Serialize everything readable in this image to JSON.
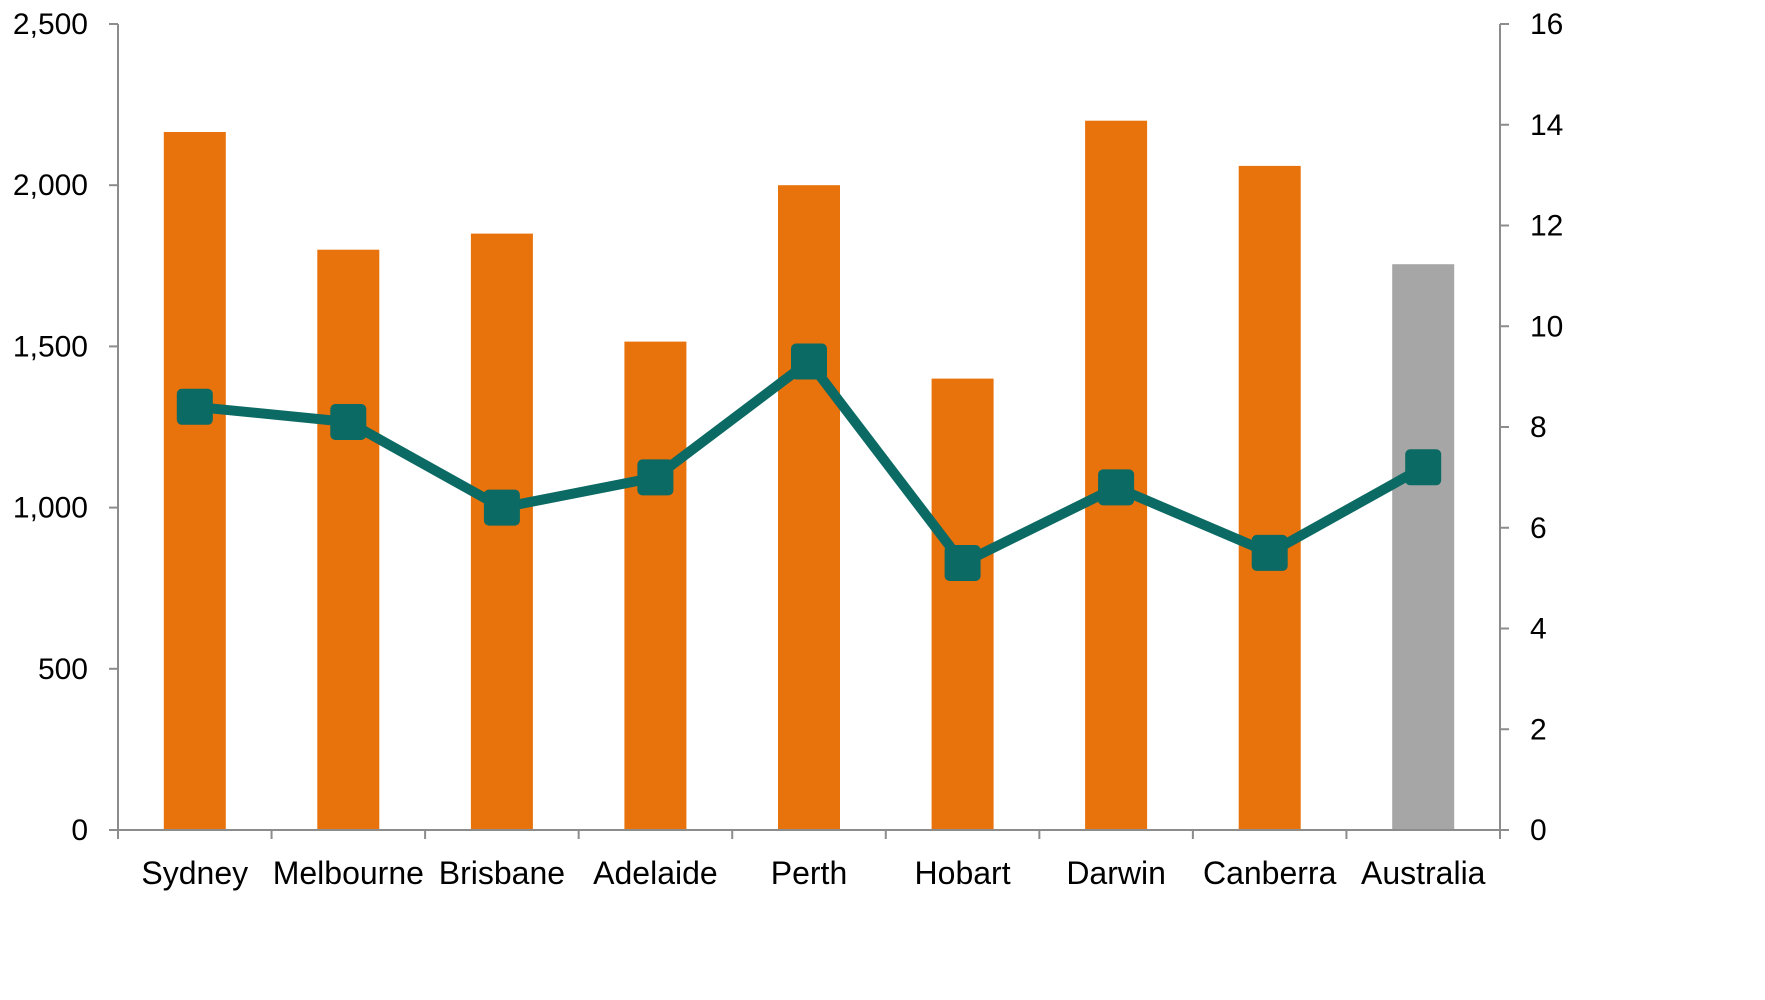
{
  "chart_data": {
    "type": "bar",
    "categories": [
      "Sydney",
      "Melbourne",
      "Brisbane",
      "Adelaide",
      "Perth",
      "Hobart",
      "Darwin",
      "Canberra",
      "Australia"
    ],
    "series": [
      {
        "kind": "bar",
        "axis": "left",
        "values": [
          2165,
          1800,
          1850,
          1515,
          2000,
          1400,
          2200,
          2060,
          1755
        ],
        "colors": [
          "#e8720c",
          "#e8720c",
          "#e8720c",
          "#e8720c",
          "#e8720c",
          "#e8720c",
          "#e8720c",
          "#e8720c",
          "#a6a6a6"
        ]
      },
      {
        "kind": "line",
        "axis": "right",
        "color": "#0b6a63",
        "values": [
          8.4,
          8.1,
          6.4,
          7.0,
          9.3,
          5.3,
          6.8,
          5.5,
          7.2
        ]
      }
    ],
    "left_axis": {
      "ylim": [
        0,
        2500
      ],
      "ticks": [
        0,
        500,
        1000,
        1500,
        2000,
        2500
      ],
      "tick_labels": [
        "0",
        "500",
        "1,000",
        "1,500",
        "2,000",
        "2,500"
      ]
    },
    "right_axis": {
      "ylim": [
        0,
        16
      ],
      "ticks": [
        0,
        2,
        4,
        6,
        8,
        10,
        12,
        14,
        16
      ],
      "tick_labels": [
        "0",
        "2",
        "4",
        "6",
        "8",
        "10",
        "12",
        "14",
        "16"
      ]
    },
    "title": "",
    "xlabel": "",
    "ylabel": "",
    "grid": false,
    "legend": "none"
  }
}
